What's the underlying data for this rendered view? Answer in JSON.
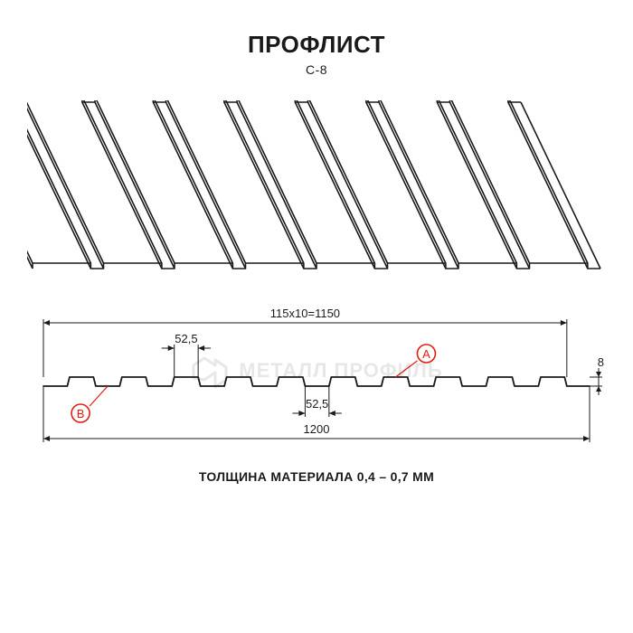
{
  "header": {
    "title": "ПРОФЛИСТ",
    "model": "С-8"
  },
  "iso_view": {
    "type": "infographic",
    "stroke_color": "#1a1a1a",
    "stroke_width": 1.6,
    "background_color": "#ffffff",
    "sheet_width": 640,
    "skew_dx": 88,
    "rib_count": 8,
    "total_height": 188
  },
  "cross_section": {
    "type": "diagram",
    "stroke_color": "#1a1a1a",
    "dim_text_color": "#1a1a1a",
    "marker_stroke": "#e31b12",
    "marker_text": "#e31b12",
    "dim_text_fontsize": 13,
    "profile": {
      "top_flat_w": 52.5,
      "bottom_flat_w": 52.5,
      "rise_w": 5,
      "height": 8,
      "repeats": 10,
      "pitch": 115,
      "pitch_label": "115х10=1150",
      "overall_width": 1200,
      "height_label": "8"
    },
    "labels": {
      "top_flat": "52,5",
      "bottom_flat": "52,5",
      "overall": "1200",
      "pitch": "115х10=1150",
      "height": "8"
    },
    "markers": {
      "A": "A",
      "B": "B"
    }
  },
  "watermark": {
    "text": "МЕТАЛЛ ПРОФИЛЬ"
  },
  "footer": {
    "thickness_note": "ТОЛЩИНА МАТЕРИАЛА 0,4 – 0,7 ММ"
  }
}
